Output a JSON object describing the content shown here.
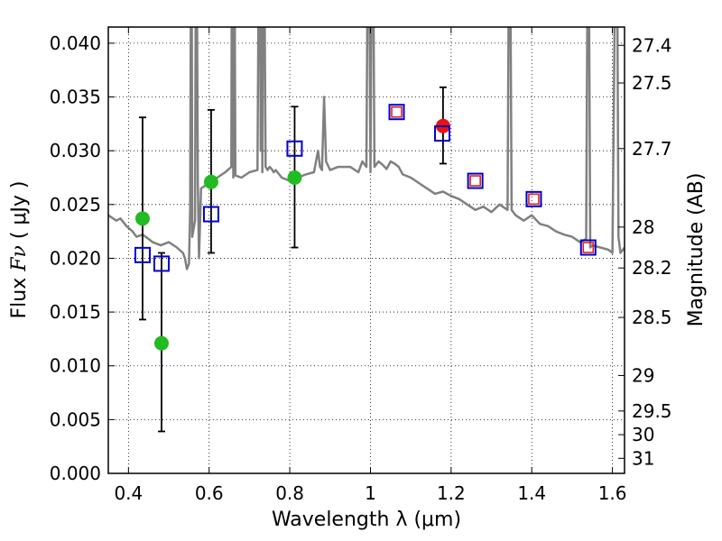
{
  "chart_data": {
    "type": "scatter",
    "xlabel": "Wavelength  λ (μm)",
    "ylabel_prefix": "Flux ",
    "ylabel_symbol": "Fν",
    "ylabel_units": " ( μJy )",
    "y2label": "Magnitude (AB)",
    "xlim": [
      0.35,
      1.63
    ],
    "ylim": [
      0.0,
      0.0415
    ],
    "grid": true,
    "xticks": [
      0.4,
      0.6,
      0.8,
      1.0,
      1.2,
      1.4,
      1.6
    ],
    "xtick_labels": [
      "0.4",
      "0.6",
      "0.8",
      "1",
      "1.2",
      "1.4",
      "1.6"
    ],
    "yticks": [
      0.0,
      0.005,
      0.01,
      0.015,
      0.02,
      0.025,
      0.03,
      0.035,
      0.04
    ],
    "ytick_labels": [
      "0.000",
      "0.005",
      "0.010",
      "0.015",
      "0.020",
      "0.025",
      "0.030",
      "0.035",
      "0.040"
    ],
    "y2ticks": [
      {
        "label": "27.4",
        "flux": 0.0398
      },
      {
        "label": "27.5",
        "flux": 0.0363
      },
      {
        "label": "27.7",
        "flux": 0.0302
      },
      {
        "label": "28",
        "flux": 0.0229
      },
      {
        "label": "28.2",
        "flux": 0.0191
      },
      {
        "label": "28.5",
        "flux": 0.0145
      },
      {
        "label": "29",
        "flux": 0.0091
      },
      {
        "label": "29.5",
        "flux": 0.0058
      },
      {
        "label": "30",
        "flux": 0.0036
      },
      {
        "label": "31",
        "flux": 0.0014
      }
    ],
    "series": [
      {
        "name": "model spectrum",
        "kind": "line",
        "color": "#808080",
        "x": [
          0.35,
          0.37,
          0.38,
          0.395,
          0.41,
          0.42,
          0.435,
          0.45,
          0.46,
          0.48,
          0.5,
          0.52,
          0.535,
          0.54,
          0.545,
          0.55,
          0.553,
          0.556,
          0.558,
          0.565,
          0.568,
          0.572,
          0.575,
          0.58,
          0.6,
          0.62,
          0.64,
          0.655,
          0.657,
          0.66,
          0.662,
          0.665,
          0.68,
          0.7,
          0.72,
          0.725,
          0.728,
          0.73,
          0.732,
          0.735,
          0.74,
          0.745,
          0.75,
          0.755,
          0.76,
          0.765,
          0.78,
          0.8,
          0.82,
          0.84,
          0.86,
          0.87,
          0.875,
          0.88,
          0.885,
          0.89,
          0.9,
          0.92,
          0.95,
          0.97,
          0.98,
          0.99,
          0.995,
          1.0,
          1.005,
          1.01,
          1.02,
          1.03,
          1.04,
          1.05,
          1.06,
          1.07,
          1.08,
          1.1,
          1.12,
          1.14,
          1.16,
          1.18,
          1.2,
          1.22,
          1.24,
          1.26,
          1.28,
          1.3,
          1.32,
          1.34,
          1.345,
          1.35,
          1.36,
          1.38,
          1.4,
          1.42,
          1.44,
          1.46,
          1.48,
          1.5,
          1.52,
          1.535,
          1.54,
          1.545,
          1.55,
          1.57,
          1.59,
          1.6,
          1.61,
          1.615,
          1.62,
          1.63
        ],
        "y": [
          0.024,
          0.0235,
          0.0237,
          0.023,
          0.0225,
          0.022,
          0.0222,
          0.0218,
          0.0215,
          0.0212,
          0.0215,
          0.021,
          0.0205,
          0.02,
          0.019,
          0.0195,
          0.0245,
          0.06,
          0.022,
          0.0235,
          0.06,
          0.027,
          0.02,
          0.0265,
          0.027,
          0.0275,
          0.028,
          0.0285,
          0.06,
          0.0275,
          0.06,
          0.0277,
          0.0275,
          0.028,
          0.0282,
          0.06,
          0.03,
          0.06,
          0.028,
          0.06,
          0.0285,
          0.0282,
          0.0285,
          0.0283,
          0.028,
          0.0282,
          0.0275,
          0.0272,
          0.0275,
          0.0278,
          0.028,
          0.03,
          0.0285,
          0.0282,
          0.035,
          0.029,
          0.0282,
          0.0285,
          0.0285,
          0.028,
          0.029,
          0.0285,
          0.06,
          0.028,
          0.06,
          0.0285,
          0.029,
          0.0287,
          0.0283,
          0.029,
          0.0288,
          0.0285,
          0.0278,
          0.0275,
          0.027,
          0.0265,
          0.026,
          0.0262,
          0.0258,
          0.0255,
          0.025,
          0.0245,
          0.0248,
          0.0243,
          0.025,
          0.0245,
          0.06,
          0.0245,
          0.024,
          0.0235,
          0.024,
          0.0232,
          0.023,
          0.0225,
          0.0222,
          0.022,
          0.0215,
          0.0218,
          0.06,
          0.021,
          0.0212,
          0.021,
          0.0208,
          0.0205,
          0.06,
          0.022,
          0.0205,
          0.021
        ]
      },
      {
        "name": "green points",
        "kind": "circle",
        "color": "#22bb22",
        "points": [
          {
            "x": 0.435,
            "y": 0.0237
          },
          {
            "x": 0.482,
            "y": 0.0121
          },
          {
            "x": 0.605,
            "y": 0.0271
          },
          {
            "x": 0.812,
            "y": 0.0275
          }
        ]
      },
      {
        "name": "red point",
        "kind": "circle",
        "color": "#ee1111",
        "points": [
          {
            "x": 1.18,
            "y": 0.0323
          }
        ]
      },
      {
        "name": "blue squares",
        "kind": "square-large",
        "color": "#0000cc",
        "points": [
          {
            "x": 0.435,
            "y": 0.0203
          },
          {
            "x": 0.482,
            "y": 0.0195
          },
          {
            "x": 0.605,
            "y": 0.0241
          },
          {
            "x": 0.812,
            "y": 0.0302
          },
          {
            "x": 1.065,
            "y": 0.0336
          },
          {
            "x": 1.178,
            "y": 0.0316
          },
          {
            "x": 1.26,
            "y": 0.0272
          },
          {
            "x": 1.405,
            "y": 0.0255
          },
          {
            "x": 1.54,
            "y": 0.021
          }
        ]
      },
      {
        "name": "red squares",
        "kind": "square-small",
        "color": "#dd2222",
        "points": [
          {
            "x": 1.065,
            "y": 0.0336
          },
          {
            "x": 1.26,
            "y": 0.0272
          },
          {
            "x": 1.405,
            "y": 0.0255
          },
          {
            "x": 1.54,
            "y": 0.021
          }
        ]
      }
    ],
    "errorbars": [
      {
        "x": 0.435,
        "low": 0.0143,
        "high": 0.0331
      },
      {
        "x": 0.482,
        "low": 0.0039,
        "high": 0.0205
      },
      {
        "x": 0.605,
        "low": 0.0205,
        "high": 0.0338
      },
      {
        "x": 0.812,
        "low": 0.021,
        "high": 0.0341
      },
      {
        "x": 1.18,
        "low": 0.0288,
        "high": 0.0359
      }
    ]
  }
}
